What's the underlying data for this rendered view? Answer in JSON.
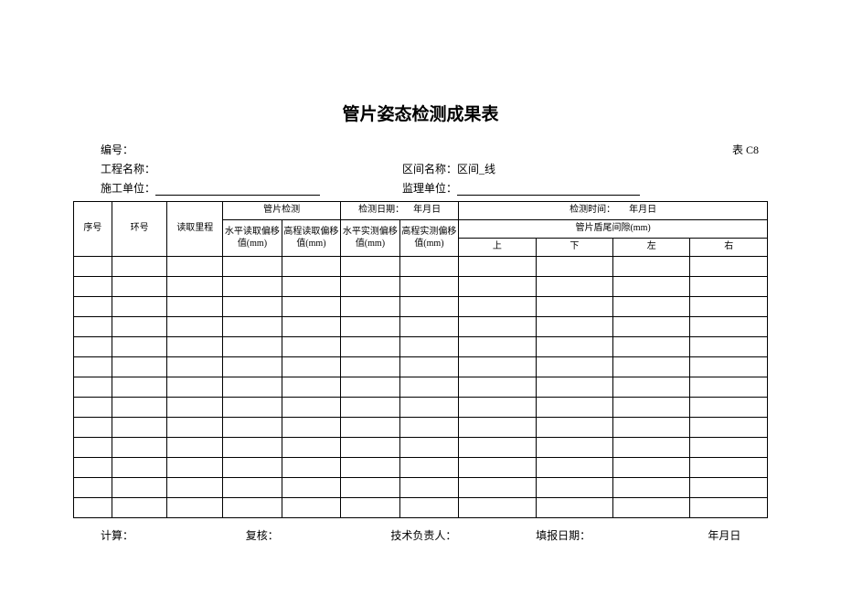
{
  "title": "管片姿态检测成果表",
  "table_code": "表 C8",
  "meta": {
    "number_label": "编号：",
    "project_label": "工程名称：",
    "section_label": "区间名称：",
    "section_value": "区间_线",
    "builder_label": "施工单位：",
    "supervisor_label": "监理单位："
  },
  "headers": {
    "seq": "序号",
    "ring": "环号",
    "mileage": "读取里程",
    "seg_check": "管片检测",
    "check_date_label": "检测日期：",
    "date_placeholder": "年月日",
    "check_time_label": "检测时间：",
    "h_read_dev": "水平读取偏移值(mm)",
    "v_read_dev": "高程读取偏移值(mm)",
    "h_meas_dev": "水平实测偏移值(mm)",
    "v_meas_dev": "高程实测偏移值(mm)",
    "tail_gap": "管片盾尾间隙(mm)",
    "up": "上",
    "down": "下",
    "left": "左",
    "right": "右"
  },
  "footer": {
    "calc": "计算：",
    "review": "复核：",
    "tech": "技术负责人：",
    "fill_date": "填报日期：",
    "date_placeholder": "年月日"
  },
  "body_row_count": 13,
  "colors": {
    "background": "#ffffff",
    "border": "#000000",
    "text": "#000000"
  }
}
